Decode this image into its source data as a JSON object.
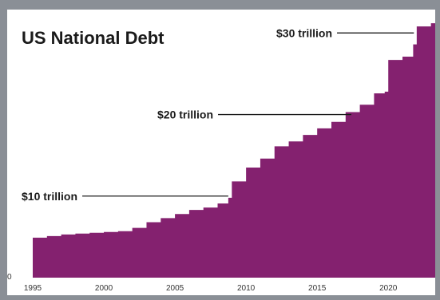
{
  "chart_data": {
    "type": "area",
    "title": "US National Debt",
    "xlabel": "",
    "ylabel": "",
    "xlim": [
      1995,
      2023.3
    ],
    "ylim": [
      0,
      31.5
    ],
    "y_axis_label": "0",
    "x_ticks": [
      1995,
      2000,
      2005,
      2010,
      2015,
      2020
    ],
    "annotations": [
      {
        "text": "$10 trillion",
        "value": 10
      },
      {
        "text": "$20 trillion",
        "value": 20
      },
      {
        "text": "$30 trillion",
        "value": 30
      }
    ],
    "series": [
      {
        "x": [
          1995,
          1996,
          1997,
          1998,
          1999,
          2000,
          2001,
          2002,
          2003,
          2004,
          2005,
          2006,
          2007,
          2008,
          2008.75,
          2009,
          2010,
          2011,
          2012,
          2013,
          2014,
          2015,
          2016,
          2017,
          2018,
          2019,
          2019.75,
          2020,
          2021,
          2021.75,
          2022,
          2023
        ],
        "values": [
          4.9,
          5.1,
          5.3,
          5.4,
          5.5,
          5.6,
          5.7,
          6.1,
          6.8,
          7.3,
          7.8,
          8.3,
          8.6,
          9.1,
          9.8,
          11.8,
          13.5,
          14.6,
          16.1,
          16.7,
          17.5,
          18.3,
          19.1,
          20.3,
          21.2,
          22.6,
          22.8,
          26.7,
          27.1,
          28.6,
          30.8,
          31.2
        ]
      }
    ],
    "colors": {
      "fill": "#84216f",
      "frame": "#8a8f96",
      "background": "#ffffff",
      "text": "#1a1a1a"
    },
    "grid": false,
    "legend": "none"
  }
}
